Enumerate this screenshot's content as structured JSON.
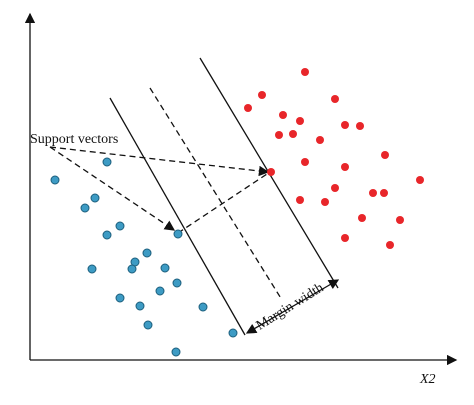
{
  "labels": {
    "support_vectors": "Support vectors",
    "margin_width": "Margin width",
    "x_axis": "X2"
  }
}
